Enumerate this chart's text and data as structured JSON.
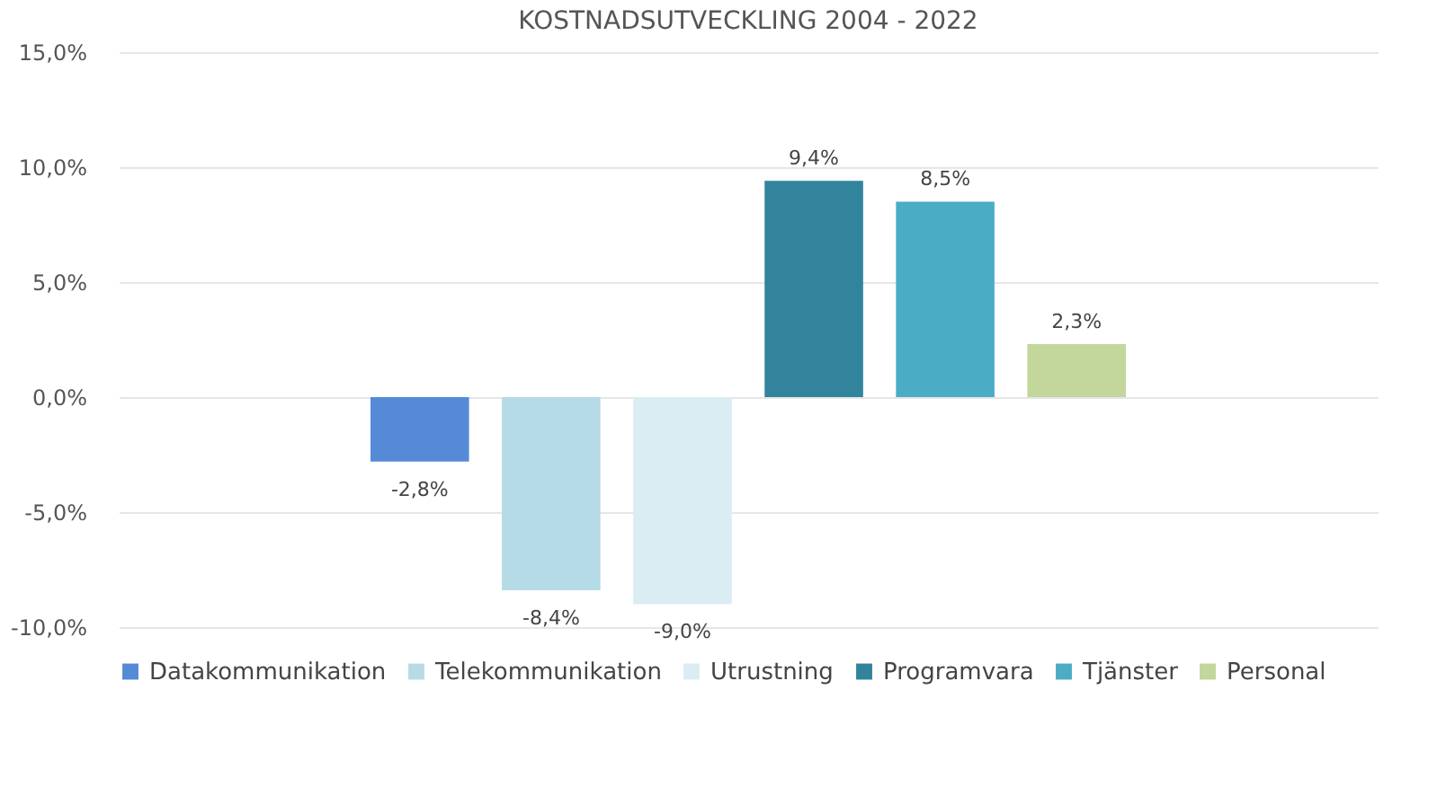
{
  "chart_data": {
    "type": "bar",
    "title": "KOSTNADSUTVECKLING 2004 - 2022",
    "categories": [
      null
    ],
    "series": [
      {
        "name": "Datakommunikation",
        "color": "#558ad6",
        "values": [
          -2.8
        ],
        "value_labels": [
          "-2,8%"
        ]
      },
      {
        "name": "Telekommunikation",
        "color": "#b5dbe6",
        "values": [
          -8.4
        ],
        "value_labels": [
          "-8,4%"
        ]
      },
      {
        "name": "Utrustning",
        "color": "#d9edf2",
        "values": [
          -9.0
        ],
        "value_labels": [
          "-9,0%"
        ]
      },
      {
        "name": "Programvara",
        "color": "#31849b",
        "values": [
          9.4
        ],
        "value_labels": [
          "9,4%"
        ]
      },
      {
        "name": "Tjänster",
        "color": "#4bacc6",
        "values": [
          8.5
        ],
        "value_labels": [
          "8,5%"
        ]
      },
      {
        "name": "Personal",
        "color": "#c3d69b",
        "values": [
          2.3
        ],
        "value_labels": [
          "2,3%"
        ]
      }
    ],
    "ylim": [
      -10,
      15
    ],
    "yticks": [
      {
        "value": -10,
        "label": "-10,0%"
      },
      {
        "value": -5,
        "label": "-5,0%"
      },
      {
        "value": 0,
        "label": "0,0%"
      },
      {
        "value": 5,
        "label": "5,0%"
      },
      {
        "value": 10,
        "label": "10,0%"
      },
      {
        "value": 15,
        "label": "15,0%"
      }
    ],
    "grid": "y",
    "legend": "bottom"
  }
}
